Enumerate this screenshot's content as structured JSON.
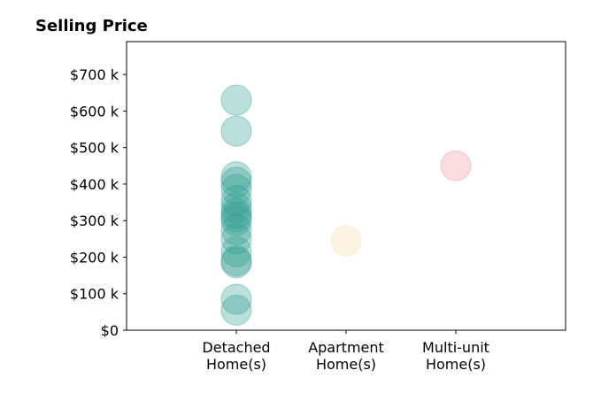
{
  "chart_data": {
    "type": "scatter",
    "title": "Selling Price",
    "xlabel": "",
    "ylabel": "",
    "categories": [
      [
        "Detached",
        "Home(s)"
      ],
      [
        "Apartment",
        "Home(s)"
      ],
      [
        "Multi-unit",
        "Home(s)"
      ]
    ],
    "xlim": [
      -1,
      3
    ],
    "ylim": [
      0,
      790000
    ],
    "yticks": [
      0,
      100000,
      200000,
      300000,
      400000,
      500000,
      600000,
      700000
    ],
    "ytick_labels": [
      "$0",
      "$100 k",
      "$200 k",
      "$300 k",
      "$400 k",
      "$500 k",
      "$600 k",
      "$700 k"
    ],
    "grid": false,
    "legend": "none",
    "series": [
      {
        "category_index": 0,
        "color": "#2a9d8f",
        "values": [
          630000,
          545000,
          420000,
          405000,
          385000,
          355000,
          335000,
          320000,
          310000,
          300000,
          275000,
          250000,
          215000,
          190000,
          185000,
          85000,
          55000
        ]
      },
      {
        "category_index": 1,
        "color": "#f4d9a1",
        "values": [
          245000
        ]
      },
      {
        "category_index": 2,
        "color": "#ef8f99",
        "values": [
          450000
        ]
      }
    ]
  }
}
